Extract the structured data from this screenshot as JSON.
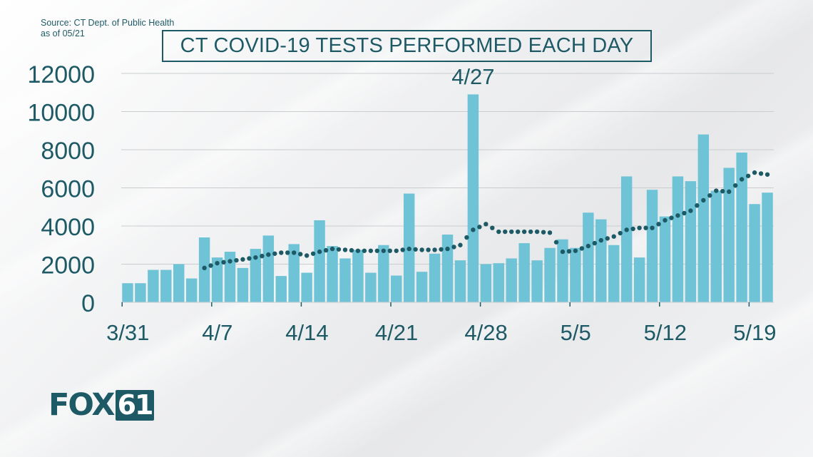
{
  "source": {
    "line1": "Source: CT Dept. of Public Health",
    "line2": "as of 05/21"
  },
  "logo": {
    "text_a": "FOX",
    "text_b": "61"
  },
  "colors": {
    "bar": "#6ec3d6",
    "dots": "#1e5a66",
    "text": "#1e5a66",
    "grid": "#c9cdd0"
  },
  "chart_data": {
    "type": "bar",
    "title": "CT COVID-19 TESTS PERFORMED EACH DAY",
    "annotation": {
      "label": "4/27",
      "category_index": 27
    },
    "ylim": [
      0,
      12000
    ],
    "yticks": [
      0,
      2000,
      4000,
      6000,
      8000,
      10000,
      12000
    ],
    "xtick_labels": [
      {
        "label": "3/31",
        "index": 0
      },
      {
        "label": "4/7",
        "index": 7
      },
      {
        "label": "4/14",
        "index": 14
      },
      {
        "label": "4/21",
        "index": 21
      },
      {
        "label": "4/28",
        "index": 28
      },
      {
        "label": "5/5",
        "index": 35
      },
      {
        "label": "5/12",
        "index": 42
      },
      {
        "label": "5/19",
        "index": 49
      }
    ],
    "grid": true,
    "categories": [
      "3/31",
      "4/1",
      "4/2",
      "4/3",
      "4/4",
      "4/5",
      "4/6",
      "4/7",
      "4/8",
      "4/9",
      "4/10",
      "4/11",
      "4/12",
      "4/13",
      "4/14",
      "4/15",
      "4/16",
      "4/17",
      "4/18",
      "4/19",
      "4/20",
      "4/21",
      "4/22",
      "4/23",
      "4/24",
      "4/25",
      "4/26",
      "4/27",
      "4/28",
      "4/29",
      "4/30",
      "5/1",
      "5/2",
      "5/3",
      "5/4",
      "5/5",
      "5/6",
      "5/7",
      "5/8",
      "5/9",
      "5/10",
      "5/11",
      "5/12",
      "5/13",
      "5/14",
      "5/15",
      "5/16",
      "5/17",
      "5/18",
      "5/19",
      "5/20"
    ],
    "values": [
      1000,
      1000,
      1700,
      1700,
      2000,
      1250,
      3400,
      2350,
      2650,
      1800,
      2800,
      3500,
      1380,
      3050,
      1550,
      4300,
      2950,
      2300,
      2750,
      1550,
      3000,
      1400,
      5700,
      1600,
      2550,
      3550,
      2200,
      10900,
      2000,
      2050,
      2300,
      3100,
      2200,
      2850,
      3300,
      2850,
      4700,
      4350,
      3000,
      6600,
      2350,
      5900,
      4500,
      6600,
      6350,
      8800,
      5850,
      7050,
      7850,
      5150,
      5750
    ],
    "trend": [
      null,
      null,
      null,
      null,
      null,
      null,
      1800,
      2050,
      2150,
      2250,
      2350,
      2500,
      2600,
      2600,
      2450,
      2650,
      2800,
      2750,
      2700,
      2700,
      2700,
      2700,
      2800,
      2750,
      2750,
      2800,
      3000,
      3800,
      4100,
      3700,
      3700,
      3700,
      3700,
      3650,
      2650,
      2700,
      2950,
      3250,
      3450,
      3800,
      3900,
      3900,
      4300,
      4550,
      4800,
      5350,
      5850,
      5800,
      6450,
      6800,
      6700
    ]
  }
}
